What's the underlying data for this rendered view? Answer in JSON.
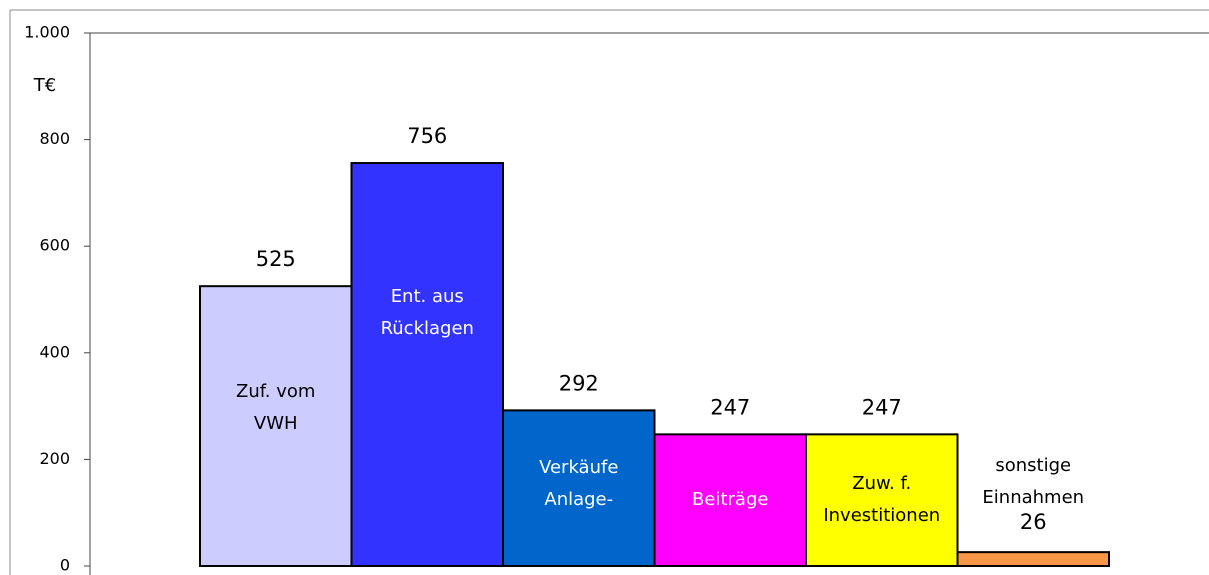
{
  "chart_data": {
    "type": "bar",
    "y_label": "T€",
    "categories": [
      [
        "Zuf. vom",
        "VWH"
      ],
      [
        "Ent. aus",
        "Rücklagen"
      ],
      [
        "Verkäufe",
        "Anlage-"
      ],
      [
        "Beiträge"
      ],
      [
        "Zuw. f.",
        "Investitionen"
      ],
      [
        "sonstige",
        "Einnahmen"
      ]
    ],
    "values": [
      525,
      756,
      292,
      247,
      247,
      26
    ],
    "colors": [
      "#ccccff",
      "#3333ff",
      "#0066cc",
      "#ff00ff",
      "#ffff00",
      "#f79646"
    ],
    "label_colors": [
      "#000000",
      "#ffffff",
      "#ffffff",
      "#ffffff",
      "#000000",
      "#000000"
    ],
    "ylim": [
      0,
      1000
    ],
    "yticks": [
      0,
      200,
      400,
      600,
      800,
      {
        "value": 1000,
        "label": "1.000"
      }
    ]
  }
}
